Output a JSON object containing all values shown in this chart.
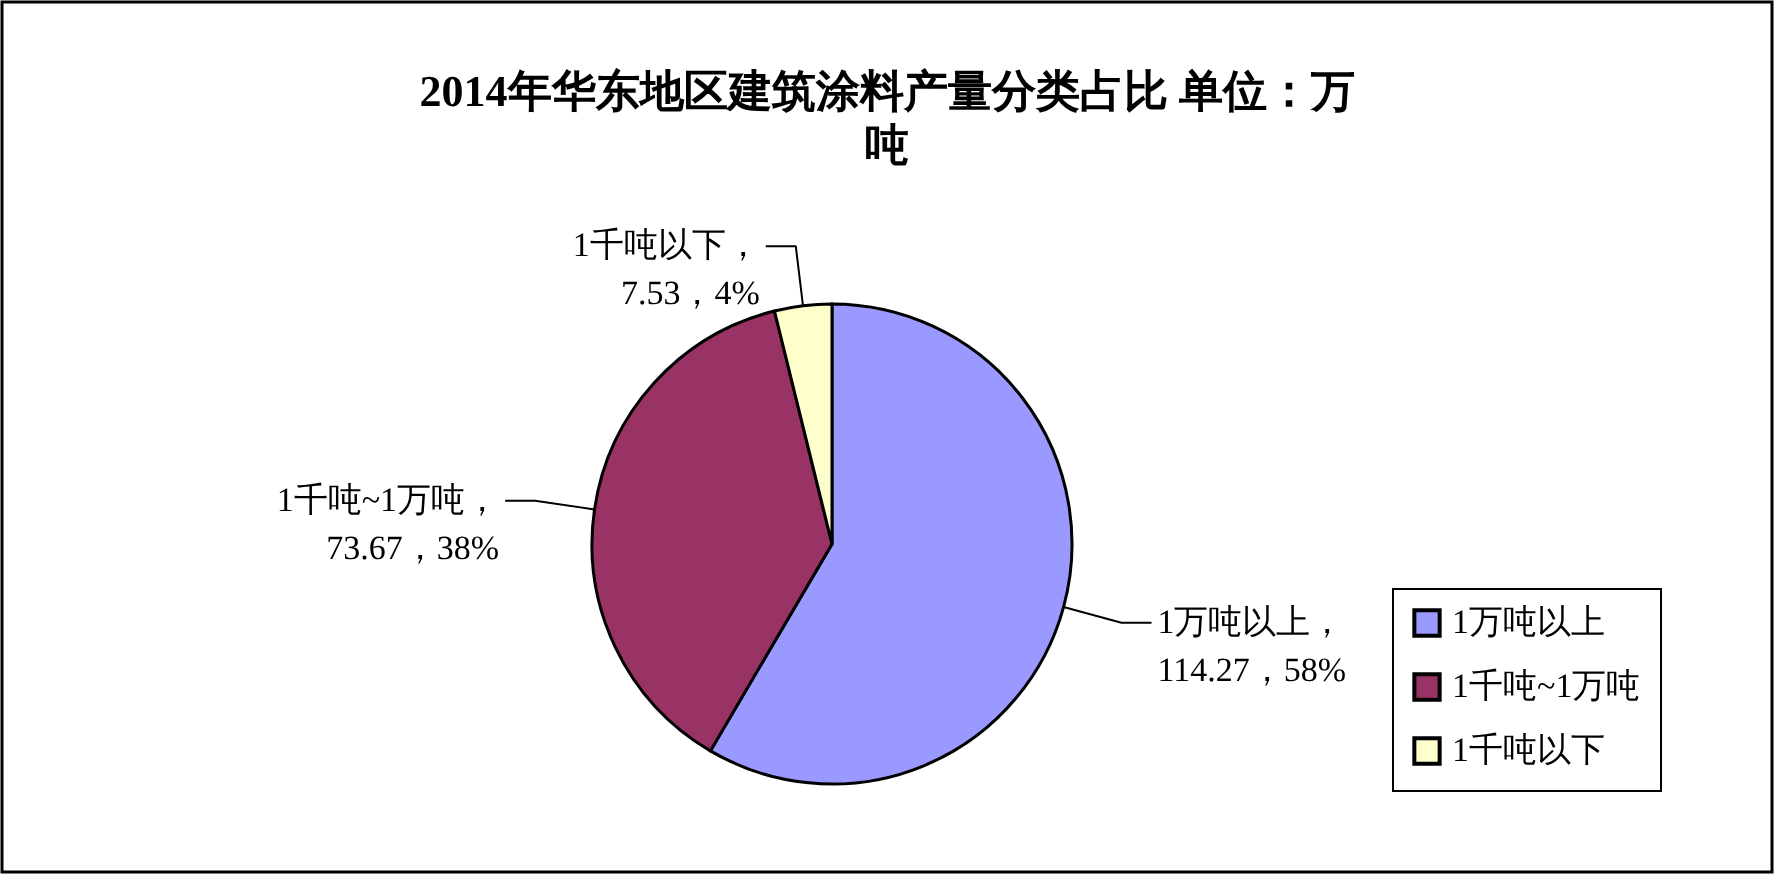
{
  "chart_data": {
    "type": "pie",
    "title": "2014年华东地区建筑涂料产量分类占比 单位：万吨",
    "categories": [
      "1万吨以上",
      "1千吨~1万吨",
      "1千吨以下"
    ],
    "values": [
      114.27,
      73.67,
      7.53
    ],
    "colors": [
      "#9999ff",
      "#993366",
      "#ffffcc"
    ],
    "value_labels": [
      "1万吨以上，114.27，58%",
      "1千吨~1万吨，73.67，38%",
      "1千吨以下，7.53，4%"
    ],
    "legend": "right"
  }
}
